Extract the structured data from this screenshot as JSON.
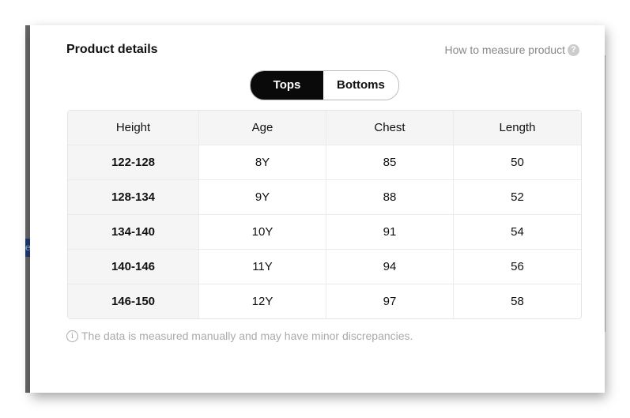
{
  "background_tab": {
    "text": "e"
  },
  "dialog": {
    "title": "Product details",
    "how_to_measure": "How to measure product",
    "tabs": [
      {
        "label": "Tops",
        "active": true
      },
      {
        "label": "Bottoms",
        "active": false
      }
    ],
    "table": {
      "headers": [
        "Height",
        "Age",
        "Chest",
        "Length"
      ],
      "rows": [
        [
          "122-128",
          "8Y",
          "85",
          "50"
        ],
        [
          "128-134",
          "9Y",
          "88",
          "52"
        ],
        [
          "134-140",
          "10Y",
          "91",
          "54"
        ],
        [
          "140-146",
          "11Y",
          "94",
          "56"
        ],
        [
          "146-150",
          "12Y",
          "97",
          "58"
        ]
      ]
    },
    "note": "The data is measured manually and may have minor discrepancies."
  }
}
